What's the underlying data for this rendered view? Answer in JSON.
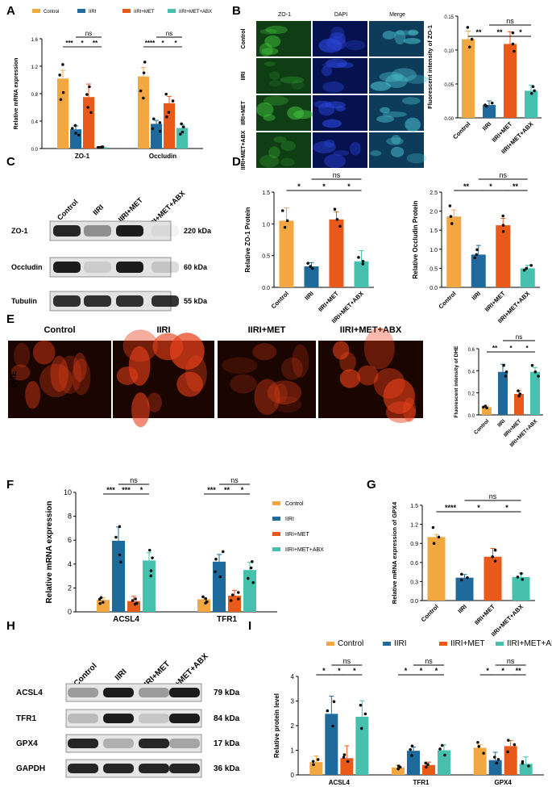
{
  "colors": {
    "Control": "#F3A741",
    "IIRI": "#1F6A9C",
    "IIRI+MET": "#E8591A",
    "IIRI+MET+ABX": "#47C1AE"
  },
  "groups": [
    "Control",
    "IIRI",
    "IIRI+MET",
    "IIRI+MET+ABX"
  ],
  "panel_letters": {
    "A": "A",
    "B": "B",
    "C": "C",
    "D": "D",
    "E": "E",
    "F": "F",
    "G": "G",
    "H": "H",
    "I": "I"
  },
  "panelB": {
    "rows": [
      "Control",
      "IIRI",
      "IIRI+MET",
      "IIRI+MET+ABX"
    ],
    "cols": [
      "ZO-1",
      "DAPI",
      "Merge"
    ]
  },
  "panelC": {
    "lanes": [
      "Control",
      "IIRI",
      "IIRI+MET",
      "IIRI+MET+ABX"
    ],
    "bands": [
      {
        "name": "ZO-1",
        "kda": "220 kDa"
      },
      {
        "name": "Occludin",
        "kda": "60 kDa"
      },
      {
        "name": "Tubulin",
        "kda": "55 kDa"
      }
    ]
  },
  "panelE": {
    "row_label": "DHE",
    "titles": [
      "Control",
      "IIRI",
      "IIRI+MET",
      "IIRI+MET+ABX"
    ]
  },
  "panelH": {
    "lanes": [
      "Control",
      "IIRI",
      "IIRI+MET",
      "IIRI+MET+ABX"
    ],
    "bands": [
      {
        "name": "ACSL4",
        "kda": "79 kDa"
      },
      {
        "name": "TFR1",
        "kda": "84 kDa"
      },
      {
        "name": "GPX4",
        "kda": "17 kDa"
      },
      {
        "name": "GAPDH",
        "kda": "36 kDa"
      }
    ]
  },
  "chart_data": [
    {
      "id": "A",
      "type": "bar",
      "ylabel": "Relative mRNA expression",
      "categories": [
        "ZO-1",
        "Occludin"
      ],
      "ylim": [
        0,
        1.6
      ],
      "yticks": [
        0,
        0.4,
        0.8,
        1.2,
        1.6
      ],
      "legend": [
        "Control",
        "IIRI",
        "IIRI+MET",
        "IIRI+MET+ABX"
      ],
      "series": [
        {
          "name": "Control",
          "values": [
            1.02,
            1.05
          ],
          "err": [
            0.12,
            0.13
          ]
        },
        {
          "name": "IIRI",
          "values": [
            0.28,
            0.36
          ],
          "err": [
            0.05,
            0.05
          ]
        },
        {
          "name": "IIRI+MET",
          "values": [
            0.75,
            0.66
          ],
          "err": [
            0.19,
            0.1
          ]
        },
        {
          "name": "IIRI+MET+ABX",
          "values": [
            0.02,
            0.3
          ],
          "err": [
            0.01,
            0.05
          ]
        }
      ],
      "sig": [
        [
          "***",
          "*",
          "**",
          "ns"
        ],
        [
          "****",
          "*",
          "*",
          "ns"
        ]
      ]
    },
    {
      "id": "B",
      "type": "bar",
      "ylabel": "Fluorescent intensity of ZO-1",
      "categories": [
        "Control",
        "IIRI",
        "IIRI+MET",
        "IIRI+MET+ABX"
      ],
      "ylim": [
        0,
        0.15
      ],
      "yticks": [
        0.0,
        0.05,
        0.1,
        0.15
      ],
      "values": [
        0.116,
        0.019,
        0.109,
        0.04
      ],
      "err": [
        0.012,
        0.006,
        0.018,
        0.008
      ],
      "sig": [
        "**",
        "**",
        "*",
        "ns"
      ]
    },
    {
      "id": "D1",
      "type": "bar",
      "ylabel": "Relative ZO-1 Protein",
      "categories": [
        "Control",
        "IIRI",
        "IIRI+MET",
        "IIRI+MET+ABX"
      ],
      "ylim": [
        0,
        1.5
      ],
      "yticks": [
        0.0,
        0.5,
        1.0,
        1.5
      ],
      "values": [
        1.05,
        0.33,
        1.07,
        0.41
      ],
      "err": [
        0.2,
        0.06,
        0.12,
        0.17
      ],
      "sig": [
        "*",
        "*",
        "*",
        "ns"
      ]
    },
    {
      "id": "D2",
      "type": "bar",
      "ylabel": "Relative Occludin  Protein",
      "categories": [
        "Control",
        "IIRI",
        "IIRI+MET",
        "IIRI+MET+ABX"
      ],
      "ylim": [
        0,
        2.5
      ],
      "yticks": [
        0.0,
        0.5,
        1.0,
        1.5,
        2.0,
        2.5
      ],
      "values": [
        1.86,
        0.86,
        1.63,
        0.5
      ],
      "err": [
        0.17,
        0.24,
        0.18,
        0.08
      ],
      "sig": [
        "**",
        "*",
        "**",
        "ns"
      ]
    },
    {
      "id": "E",
      "type": "bar",
      "ylabel": "Fluorescent intensity of DHE",
      "categories": [
        "Control",
        "IIRI",
        "IIRI+MET",
        "IIRI+MET+ABX"
      ],
      "ylim": [
        0,
        0.6
      ],
      "yticks": [
        0.0,
        0.2,
        0.4,
        0.6
      ],
      "values": [
        0.07,
        0.39,
        0.19,
        0.39
      ],
      "err": [
        0.01,
        0.07,
        0.03,
        0.04
      ],
      "sig": [
        "**",
        "*",
        "*",
        "ns"
      ]
    },
    {
      "id": "F",
      "type": "bar",
      "ylabel": "Relative mRNA expression",
      "categories": [
        "ACSL4",
        "TFR1"
      ],
      "ylim": [
        0,
        10
      ],
      "yticks": [
        0,
        2,
        4,
        6,
        8,
        10
      ],
      "legend": [
        "Control",
        "IIRI",
        "IIRI+MET",
        "IIRI+MET+ABX"
      ],
      "series": [
        {
          "name": "Control",
          "values": [
            1.0,
            1.05
          ],
          "err": [
            0.2,
            0.15
          ]
        },
        {
          "name": "IIRI",
          "values": [
            5.95,
            4.2
          ],
          "err": [
            1.15,
            0.6
          ]
        },
        {
          "name": "IIRI+MET",
          "values": [
            0.9,
            1.35
          ],
          "err": [
            0.4,
            0.45
          ]
        },
        {
          "name": "IIRI+MET+ABX",
          "values": [
            4.3,
            3.5
          ],
          "err": [
            0.65,
            0.65
          ]
        }
      ],
      "sig": [
        [
          "***",
          "***",
          "*",
          "ns"
        ],
        [
          "***",
          "**",
          "*",
          "ns"
        ]
      ]
    },
    {
      "id": "G",
      "type": "bar",
      "ylabel": "Relative mRNA expression of GPX4",
      "categories": [
        "Control",
        "IIRI",
        "IIRI+MET",
        "IIRI+MET+ABX"
      ],
      "ylim": [
        0,
        1.5
      ],
      "yticks": [
        0.0,
        0.3,
        0.6,
        0.9,
        1.2,
        1.5
      ],
      "values": [
        1.0,
        0.36,
        0.69,
        0.37
      ],
      "err": [
        0.04,
        0.05,
        0.13,
        0.06
      ],
      "sig": [
        "****",
        "*",
        "*",
        "ns"
      ]
    },
    {
      "id": "I",
      "type": "bar",
      "ylabel": "Relative protein level",
      "categories": [
        "ACSL4",
        "TFR1",
        "GPX4"
      ],
      "ylim": [
        0,
        4
      ],
      "yticks": [
        0,
        1,
        2,
        3,
        4
      ],
      "legend": [
        "Control",
        "IIRI",
        "IIRI+MET",
        "IIRI+MET+ABX"
      ],
      "series": [
        {
          "name": "Control",
          "values": [
            0.52,
            0.3,
            1.1
          ],
          "err": [
            0.25,
            0.1,
            0.12
          ]
        },
        {
          "name": "IIRI",
          "values": [
            2.48,
            0.98,
            0.6
          ],
          "err": [
            0.72,
            0.15,
            0.32
          ]
        },
        {
          "name": "IIRI+MET",
          "values": [
            0.68,
            0.4,
            1.17
          ],
          "err": [
            0.5,
            0.12,
            0.22
          ]
        },
        {
          "name": "IIRI+MET+ABX",
          "values": [
            2.36,
            1.0,
            0.45
          ],
          "err": [
            0.65,
            0.22,
            0.28
          ]
        }
      ],
      "sig": [
        [
          "*",
          "*",
          "*",
          "ns"
        ],
        [
          "*",
          "*",
          "*",
          "ns"
        ],
        [
          "*",
          "*",
          "**",
          "ns"
        ]
      ]
    }
  ]
}
